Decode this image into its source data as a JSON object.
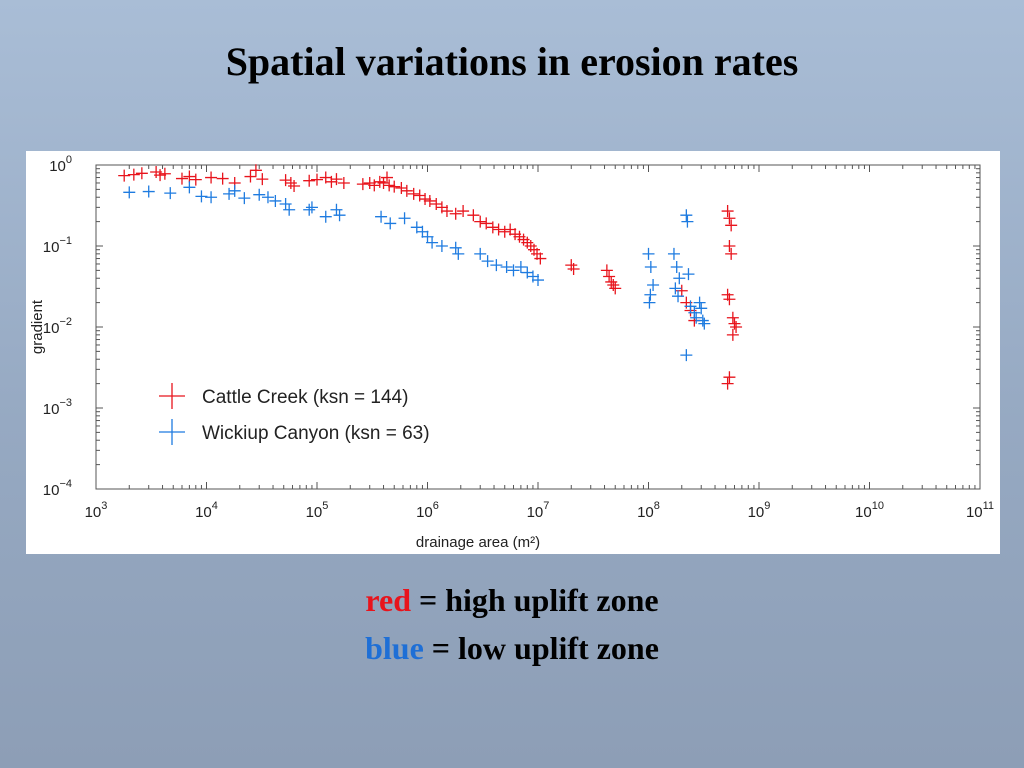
{
  "slide": {
    "title": "Spatial variations in erosion rates",
    "caption_lines": [
      {
        "key": "red",
        "key_color": "#e8141c",
        "text": " = high uplift zone"
      },
      {
        "key": "blue",
        "key_color": "#1e6fd6",
        "text": " = low uplift zone"
      }
    ]
  },
  "chart_data": {
    "type": "scatter",
    "xlabel": "drainage area (m²)",
    "ylabel": "gradient",
    "x_scale": "log",
    "y_scale": "log",
    "xlim": [
      1000,
      100000000000
    ],
    "ylim": [
      0.0001,
      1
    ],
    "x_ticks": [
      {
        "base": "10",
        "exp": "3"
      },
      {
        "base": "10",
        "exp": "4"
      },
      {
        "base": "10",
        "exp": "5"
      },
      {
        "base": "10",
        "exp": "6"
      },
      {
        "base": "10",
        "exp": "7"
      },
      {
        "base": "10",
        "exp": "8"
      },
      {
        "base": "10",
        "exp": "9"
      },
      {
        "base": "10",
        "exp": "10"
      },
      {
        "base": "10",
        "exp": "11"
      }
    ],
    "y_ticks": [
      {
        "base": "10",
        "exp": "0"
      },
      {
        "base": "10",
        "exp": "−1"
      },
      {
        "base": "10",
        "exp": "−2"
      },
      {
        "base": "10",
        "exp": "−3"
      },
      {
        "base": "10",
        "exp": "−4"
      }
    ],
    "grid": false,
    "legend_position": "lower-left",
    "series": [
      {
        "name": "Cattle Creek (ksn = 144)",
        "color": "#e8141c",
        "points": [
          [
            1800,
            0.74
          ],
          [
            2200,
            0.76
          ],
          [
            2600,
            0.79
          ],
          [
            3500,
            0.82
          ],
          [
            3800,
            0.75
          ],
          [
            4200,
            0.78
          ],
          [
            6000,
            0.68
          ],
          [
            7000,
            0.72
          ],
          [
            8000,
            0.66
          ],
          [
            11000,
            0.7
          ],
          [
            14000,
            0.68
          ],
          [
            18000,
            0.6
          ],
          [
            25000,
            0.72
          ],
          [
            28000,
            0.86
          ],
          [
            32000,
            0.67
          ],
          [
            52000,
            0.65
          ],
          [
            58000,
            0.6
          ],
          [
            62000,
            0.55
          ],
          [
            85000,
            0.64
          ],
          [
            100000,
            0.66
          ],
          [
            120000,
            0.7
          ],
          [
            135000,
            0.62
          ],
          [
            150000,
            0.67
          ],
          [
            175000,
            0.6
          ],
          [
            260000,
            0.58
          ],
          [
            300000,
            0.6
          ],
          [
            330000,
            0.56
          ],
          [
            370000,
            0.62
          ],
          [
            400000,
            0.6
          ],
          [
            430000,
            0.7
          ],
          [
            450000,
            0.56
          ],
          [
            500000,
            0.54
          ],
          [
            580000,
            0.52
          ],
          [
            650000,
            0.48
          ],
          [
            750000,
            0.44
          ],
          [
            850000,
            0.42
          ],
          [
            950000,
            0.38
          ],
          [
            1050000,
            0.36
          ],
          [
            1200000,
            0.33
          ],
          [
            1350000,
            0.3
          ],
          [
            1500000,
            0.27
          ],
          [
            1800000,
            0.25
          ],
          [
            2100000,
            0.27
          ],
          [
            2600000,
            0.24
          ],
          [
            3000000,
            0.2
          ],
          [
            3400000,
            0.19
          ],
          [
            3900000,
            0.17
          ],
          [
            4400000,
            0.16
          ],
          [
            5000000,
            0.15
          ],
          [
            5600000,
            0.16
          ],
          [
            6200000,
            0.14
          ],
          [
            6800000,
            0.13
          ],
          [
            7400000,
            0.12
          ],
          [
            8000000,
            0.11
          ],
          [
            8600000,
            0.1
          ],
          [
            9200000,
            0.09
          ],
          [
            9800000,
            0.08
          ],
          [
            10500000,
            0.07
          ],
          [
            20000000,
            0.058
          ],
          [
            21000000,
            0.052
          ],
          [
            42000000,
            0.05
          ],
          [
            44000000,
            0.042
          ],
          [
            46000000,
            0.036
          ],
          [
            48000000,
            0.033
          ],
          [
            50000000,
            0.03
          ],
          [
            200000000,
            0.028
          ],
          [
            220000000,
            0.02
          ],
          [
            240000000,
            0.016
          ],
          [
            260000000,
            0.012
          ],
          [
            520000000,
            0.27
          ],
          [
            540000000,
            0.22
          ],
          [
            560000000,
            0.18
          ],
          [
            540000000,
            0.1
          ],
          [
            560000000,
            0.08
          ],
          [
            520000000,
            0.025
          ],
          [
            540000000,
            0.022
          ],
          [
            580000000,
            0.013
          ],
          [
            600000000,
            0.011
          ],
          [
            620000000,
            0.01
          ],
          [
            580000000,
            0.008
          ],
          [
            540000000,
            0.0024
          ],
          [
            520000000,
            0.002
          ]
        ]
      },
      {
        "name": "Wickiup Canyon (ksn = 63)",
        "color": "#1e7be0",
        "points": [
          [
            2000,
            0.46
          ],
          [
            3000,
            0.47
          ],
          [
            4700,
            0.45
          ],
          [
            7000,
            0.53
          ],
          [
            9000,
            0.41
          ],
          [
            11000,
            0.4
          ],
          [
            16000,
            0.44
          ],
          [
            18000,
            0.48
          ],
          [
            22000,
            0.39
          ],
          [
            30000,
            0.43
          ],
          [
            36000,
            0.4
          ],
          [
            42000,
            0.36
          ],
          [
            52000,
            0.33
          ],
          [
            56000,
            0.28
          ],
          [
            85000,
            0.28
          ],
          [
            90000,
            0.3
          ],
          [
            120000,
            0.23
          ],
          [
            150000,
            0.28
          ],
          [
            160000,
            0.24
          ],
          [
            380000,
            0.23
          ],
          [
            460000,
            0.19
          ],
          [
            620000,
            0.22
          ],
          [
            800000,
            0.17
          ],
          [
            900000,
            0.15
          ],
          [
            1000000,
            0.13
          ],
          [
            1100000,
            0.11
          ],
          [
            1350000,
            0.1
          ],
          [
            1800000,
            0.095
          ],
          [
            1900000,
            0.08
          ],
          [
            3000000,
            0.08
          ],
          [
            3500000,
            0.065
          ],
          [
            4200000,
            0.058
          ],
          [
            5200000,
            0.055
          ],
          [
            6000000,
            0.05
          ],
          [
            7000000,
            0.055
          ],
          [
            8000000,
            0.047
          ],
          [
            9000000,
            0.042
          ],
          [
            10000000,
            0.038
          ],
          [
            100000000,
            0.08
          ],
          [
            105000000,
            0.055
          ],
          [
            110000000,
            0.033
          ],
          [
            104000000,
            0.025
          ],
          [
            102000000,
            0.02
          ],
          [
            170000000,
            0.08
          ],
          [
            180000000,
            0.055
          ],
          [
            190000000,
            0.04
          ],
          [
            175000000,
            0.03
          ],
          [
            185000000,
            0.024
          ],
          [
            220000000,
            0.24
          ],
          [
            225000000,
            0.2
          ],
          [
            230000000,
            0.045
          ],
          [
            220000000,
            0.0045
          ],
          [
            240000000,
            0.018
          ],
          [
            260000000,
            0.015
          ],
          [
            270000000,
            0.013
          ],
          [
            290000000,
            0.02
          ],
          [
            300000000,
            0.017
          ],
          [
            310000000,
            0.012
          ],
          [
            320000000,
            0.011
          ]
        ]
      }
    ]
  }
}
